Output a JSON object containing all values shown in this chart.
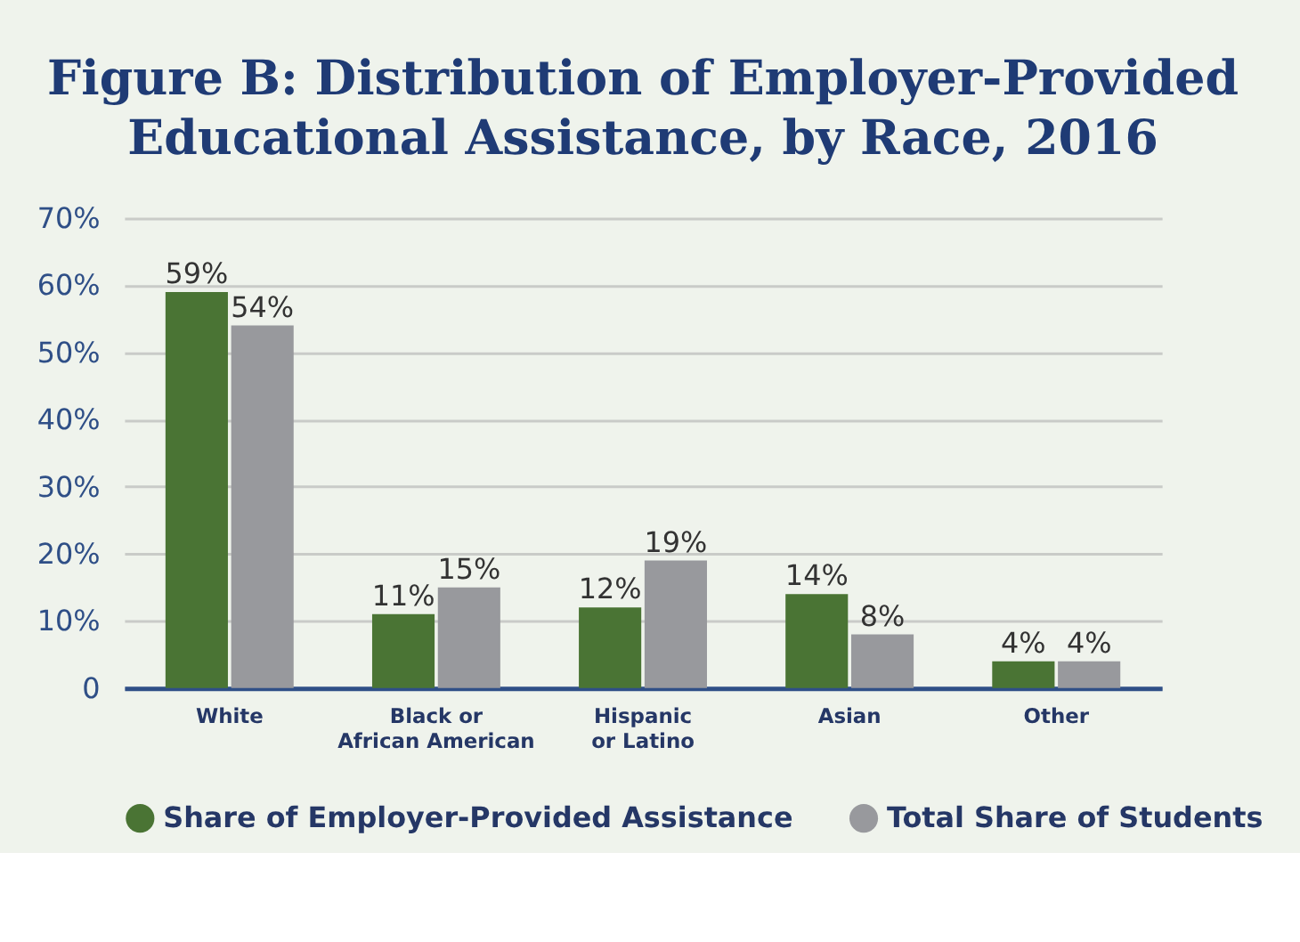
{
  "chart_data": {
    "type": "bar",
    "title": "Figure B: Distribution of Employer-Provided\nEducational Assistance, by Race, 2016",
    "categories": [
      "White",
      "Black or\nAfrican American",
      "Hispanic\nor Latino",
      "Asian",
      "Other"
    ],
    "series": [
      {
        "name": "Share of Employer-Provided Assistance",
        "color": "#4a7434",
        "values": [
          59,
          11,
          12,
          14,
          4
        ],
        "value_labels": [
          "59%",
          "11%",
          "12%",
          "14%",
          "4%"
        ]
      },
      {
        "name": "Total Share of Students",
        "color": "#98999d",
        "values": [
          54,
          15,
          19,
          8,
          4
        ],
        "value_labels": [
          "54%",
          "15%",
          "19%",
          "8%",
          "4%"
        ]
      }
    ],
    "ylim": [
      0,
      70
    ],
    "yticks": [
      0,
      {
        "value": 10,
        "label": "10%"
      },
      {
        "value": 20,
        "label": "20%"
      },
      {
        "value": 30,
        "label": "30%"
      },
      {
        "value": 40,
        "label": "40%"
      },
      {
        "value": 50,
        "label": "50%"
      },
      {
        "value": 60,
        "label": "60%"
      },
      {
        "value": 70,
        "label": "70%"
      }
    ],
    "grid": "y",
    "legend": "bottom"
  }
}
